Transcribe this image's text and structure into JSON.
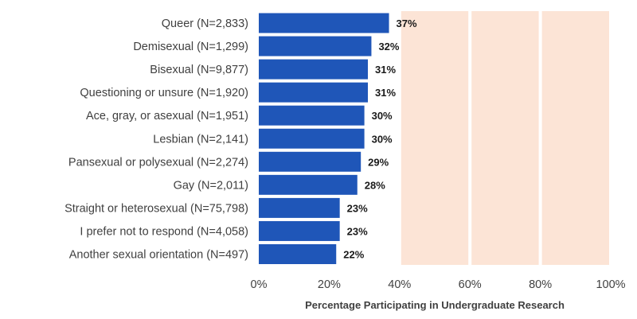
{
  "chart_data": {
    "type": "bar",
    "orientation": "horizontal",
    "title": "",
    "xlabel": "Percentage Participating in Undergraduate Research",
    "ylabel": "",
    "xlim": [
      0,
      100
    ],
    "x_ticks": [
      0,
      20,
      40,
      60,
      80,
      100
    ],
    "x_tick_labels": [
      "0%",
      "20%",
      "40%",
      "60%",
      "80%",
      "100%"
    ],
    "categories": [
      "Queer (N=2,833)",
      "Demisexual (N=1,299)",
      "Bisexual (N=9,877)",
      "Questioning or unsure (N=1,920)",
      "Ace, gray, or asexual (N=1,951)",
      "Lesbian (N=2,141)",
      "Pansexual or polysexual (N=2,274)",
      "Gay (N=2,011)",
      "Straight or heterosexual (N=75,798)",
      "I prefer not to respond (N=4,058)",
      "Another sexual orientation (N=497)"
    ],
    "values": [
      37,
      32,
      31,
      31,
      30,
      30,
      29,
      28,
      23,
      23,
      22
    ],
    "value_labels": [
      "37%",
      "32%",
      "31%",
      "31%",
      "30%",
      "30%",
      "29%",
      "28%",
      "23%",
      "23%",
      "22%"
    ],
    "grid": false,
    "legend": "none",
    "bar_color": "#1f56b8",
    "background_band_color": "#fce4d6",
    "background_bands": [
      [
        40,
        60
      ],
      [
        60,
        80
      ],
      [
        80,
        100
      ]
    ]
  }
}
